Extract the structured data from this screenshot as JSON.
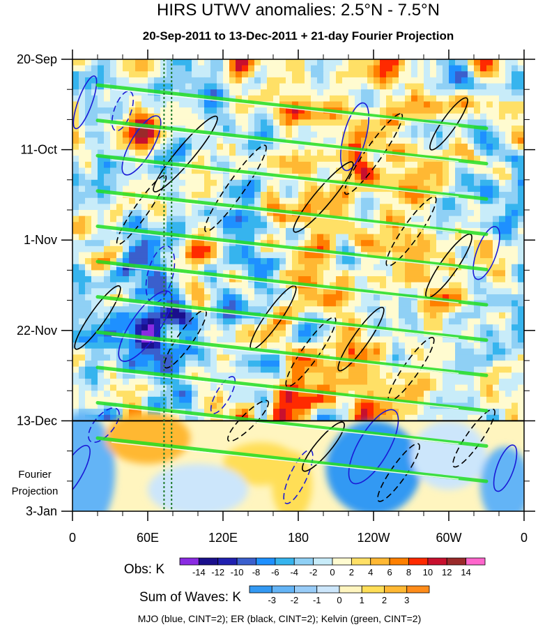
{
  "chart_data": {
    "type": "heatmap",
    "title": "HIRS UTWV anomalies: 2.5°N - 7.5°N",
    "subtitle": "20-Sep-2011 to 13-Dec-2011 + 21-day Fourier Projection",
    "x_axis": {
      "ticks": [
        "0",
        "60E",
        "120E",
        "180",
        "120W",
        "60W",
        "0"
      ],
      "tick_longitudes_deg_east": [
        0,
        60,
        120,
        180,
        240,
        300,
        360
      ],
      "range": [
        0,
        360
      ]
    },
    "y_axis": {
      "ticks": [
        "20-Sep",
        "11-Oct",
        "1-Nov",
        "22-Nov",
        "13-Dec",
        "3-Jan"
      ],
      "tick_days_from_start": [
        0,
        21,
        42,
        63,
        84,
        105
      ],
      "range_days": [
        0,
        105
      ],
      "inverted": true,
      "projection_label": [
        "Fourier",
        "Projection"
      ],
      "obs_end_tick": "13-Dec"
    },
    "reference_lines": {
      "observation_end": "13-Dec",
      "dotted_longitudes_deg_east": [
        73,
        79
      ]
    },
    "obs_colorbar": {
      "label": "Obs: K",
      "tick_labels": [
        "-14",
        "-12",
        "-10",
        "-8",
        "-6",
        "-4",
        "-2",
        "0",
        "2",
        "4",
        "6",
        "8",
        "10",
        "12",
        "14"
      ],
      "colors": [
        "#8a2be2",
        "#1a0f8c",
        "#2020b0",
        "#3a5fcd",
        "#1e90ff",
        "#36b4ee",
        "#8fd0f5",
        "#c8ecf9",
        "#fffbd0",
        "#ffe066",
        "#ffb833",
        "#ff8000",
        "#ff2a00",
        "#c8102e",
        "#9a2a2a",
        "#ff66cc"
      ]
    },
    "waves_colorbar": {
      "label": "Sum of Waves: K",
      "tick_labels": [
        "-3",
        "-2",
        "-1",
        "0",
        "1",
        "2",
        "3"
      ],
      "colors": [
        "#3399f3",
        "#64b4f6",
        "#98ccf8",
        "#cce6fb",
        "#fff5bf",
        "#ffde57",
        "#ffb833",
        "#ff8c1a"
      ]
    },
    "legend_footer": "MJO (blue, CINT=2); ER (black, CINT=2); Kelvin (green, CINT=2)",
    "series": [
      {
        "name": "MJO",
        "color": "#1a1ad6",
        "contour_interval": 2
      },
      {
        "name": "ER",
        "color": "#000000",
        "contour_interval": 2
      },
      {
        "name": "Kelvin",
        "color": "#22dd22",
        "contour_interval": 2
      }
    ]
  }
}
